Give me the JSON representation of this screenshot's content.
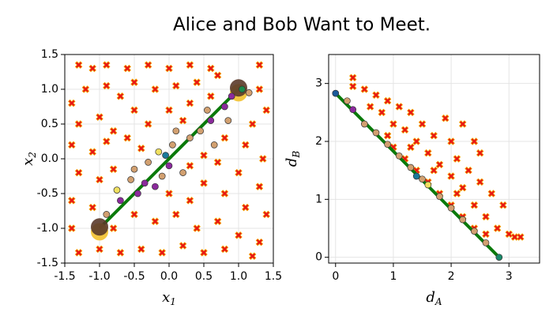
{
  "title": "Alice and Bob Want to Meet.",
  "chart_data": [
    {
      "type": "scatter",
      "xlabel": {
        "text": "x",
        "sub": "1"
      },
      "ylabel": {
        "text": "x",
        "sub": "2"
      },
      "xlim": [
        -1.5,
        1.5
      ],
      "ylim": [
        -1.5,
        1.5
      ],
      "grid": true,
      "xticks": [
        {
          "value": -1.5,
          "label": "-1.5"
        },
        {
          "value": -1,
          "label": "-1.0"
        },
        {
          "value": -0.5,
          "label": "-0.5"
        },
        {
          "value": 0,
          "label": "0.0"
        },
        0.5,
        {
          "value": 1,
          "label": "1.0"
        },
        1.5
      ],
      "yticks": [
        {
          "value": -1.5,
          "label": "-1.5"
        },
        {
          "value": -1,
          "label": "-1.0"
        },
        {
          "value": -0.5,
          "label": "-0.5"
        },
        {
          "value": 0,
          "label": "0.0"
        },
        0.5,
        {
          "value": 1,
          "label": "1.0"
        },
        1.5
      ],
      "series": [
        {
          "marker": "x",
          "color": "#e8101a",
          "x": [
            -1.3,
            -1.1,
            -0.9,
            -0.6,
            -0.3,
            0.0,
            0.3,
            0.6,
            1.3,
            -1.4,
            -1.2,
            -0.9,
            -0.7,
            -0.5,
            -0.2,
            0.1,
            0.4,
            0.7,
            1.3,
            -1.3,
            -1.0,
            -0.8,
            -0.5,
            -0.3,
            0.0,
            0.3,
            0.6,
            1.2,
            1.4,
            -1.4,
            -1.1,
            -0.9,
            -0.6,
            -0.4,
            0.2,
            0.8,
            1.1,
            1.35,
            -1.3,
            -1.0,
            -0.8,
            0.3,
            0.5,
            0.7,
            1.0,
            1.3,
            -1.4,
            -1.1,
            0.0,
            0.3,
            0.5,
            0.8,
            1.1,
            1.4,
            -1.4,
            -0.8,
            -0.5,
            -0.2,
            0.1,
            0.4,
            0.7,
            1.0,
            1.3,
            -1.3,
            -1.0,
            -0.7,
            -0.4,
            -0.1,
            0.2,
            0.5,
            0.8,
            1.2
          ],
          "y": [
            1.35,
            1.3,
            1.35,
            1.3,
            1.35,
            1.3,
            1.35,
            1.3,
            1.35,
            0.8,
            1.0,
            1.05,
            0.9,
            1.1,
            1.0,
            1.05,
            1.1,
            1.2,
            1.0,
            0.5,
            0.6,
            0.4,
            0.7,
            0.5,
            0.7,
            0.8,
            0.9,
            0.5,
            0.7,
            0.2,
            0.1,
            0.25,
            0.3,
            0.15,
            0.55,
            0.3,
            0.2,
            0.0,
            -0.2,
            -0.3,
            -0.15,
            -0.1,
            0.05,
            -0.05,
            -0.2,
            -0.4,
            -0.6,
            -0.7,
            -0.5,
            -0.6,
            -0.35,
            -0.5,
            -0.7,
            -0.8,
            -1.0,
            -1.0,
            -0.8,
            -0.9,
            -0.8,
            -1.0,
            -0.9,
            -1.1,
            -1.2,
            -1.35,
            -1.3,
            -1.35,
            -1.3,
            -1.35,
            -1.25,
            -1.35,
            -1.3,
            -1.4
          ]
        },
        {
          "marker": "line",
          "color": "#0a7a0a",
          "x": [
            -1,
            1
          ],
          "y": [
            -1,
            1
          ]
        },
        {
          "marker": "big-circle",
          "colors": [
            "#f2c12e",
            "#5a3a2a",
            "#f2c12e",
            "#5a3a2a"
          ],
          "x": [
            -1.0,
            -1.0,
            1.0,
            1.0
          ],
          "y": [
            -1.05,
            -0.98,
            0.95,
            1.02
          ]
        },
        {
          "marker": "circle",
          "colors": [
            "#d2a070",
            "#f0e060",
            "#8b2a9c",
            "#d2a070",
            "#d2a070",
            "#8b2a9c",
            "#8b2a9c",
            "#d2a070",
            "#8b2a9c",
            "#f0e060",
            "#d2a070",
            "#1a7a9a",
            "#8b2a9c",
            "#d2a070",
            "#d2a070",
            "#d2a070",
            "#d2a070",
            "#d2a070",
            "#8b2a9c",
            "#d2a070",
            "#d2a070",
            "#8b2a9c",
            "#d2a070",
            "#8b2a9c",
            "#1a8a4a",
            "#d2a070"
          ],
          "x": [
            -0.9,
            -0.75,
            -0.7,
            -0.55,
            -0.5,
            -0.45,
            -0.35,
            -0.3,
            -0.2,
            -0.15,
            -0.1,
            -0.05,
            0.0,
            0.05,
            0.1,
            0.2,
            0.3,
            0.45,
            0.6,
            0.55,
            0.65,
            0.8,
            0.85,
            0.9,
            1.05,
            1.15
          ],
          "y": [
            -0.8,
            -0.45,
            -0.6,
            -0.3,
            -0.15,
            -0.5,
            -0.35,
            -0.05,
            -0.4,
            0.1,
            -0.25,
            0.05,
            -0.1,
            0.2,
            0.4,
            -0.2,
            0.3,
            0.4,
            0.55,
            0.7,
            0.2,
            0.75,
            0.55,
            0.9,
            1.0,
            0.95
          ]
        }
      ]
    },
    {
      "type": "scatter",
      "xlabel": {
        "text": "d",
        "sub": "A"
      },
      "ylabel": {
        "text": "d",
        "sub": "B"
      },
      "xlim": [
        -0.12,
        3.53
      ],
      "ylim": [
        -0.1,
        3.5
      ],
      "grid": true,
      "xticks": [
        0,
        1,
        2,
        3
      ],
      "yticks": [
        0,
        1,
        2,
        3
      ],
      "series": [
        {
          "marker": "x",
          "color": "#e8101a",
          "x": [
            0.3,
            0.3,
            0.5,
            0.6,
            0.7,
            0.8,
            0.9,
            1.0,
            1.1,
            1.2,
            1.3,
            1.4,
            1.5,
            1.6,
            1.7,
            1.8,
            1.9,
            2.0,
            2.0,
            2.1,
            2.2,
            2.2,
            2.3,
            2.4,
            2.4,
            2.5,
            2.5,
            2.6,
            2.7,
            2.8,
            2.9,
            3.0,
            3.1,
            3.2,
            1.0,
            1.2,
            1.4,
            1.6,
            1.8,
            2.0,
            2.2,
            2.4,
            2.6,
            0.9,
            1.3,
            1.7,
            2.1
          ],
          "y": [
            2.95,
            3.1,
            2.9,
            2.6,
            2.8,
            2.5,
            2.7,
            2.3,
            2.6,
            2.2,
            2.5,
            2.0,
            2.3,
            1.8,
            2.1,
            1.6,
            2.4,
            1.4,
            2.0,
            1.7,
            2.3,
            1.2,
            1.5,
            2.0,
            0.9,
            1.3,
            1.8,
            0.7,
            1.1,
            0.5,
            0.9,
            0.4,
            0.35,
            0.35,
            1.9,
            1.7,
            1.5,
            1.3,
            1.1,
            0.9,
            0.7,
            0.5,
            0.4,
            2.1,
            1.9,
            1.5,
            1.1
          ]
        },
        {
          "marker": "line",
          "color": "#0a7a0a",
          "x": [
            0,
            2.83
          ],
          "y": [
            2.83,
            0
          ]
        },
        {
          "marker": "circle",
          "colors": [
            "#1a5a9a",
            "#d2a070",
            "#8b2a9c",
            "#d2a070",
            "#d2a070",
            "#d2a070",
            "#d2a070",
            "#d2a070",
            "#1a7a9a",
            "#d2a070",
            "#f0e060",
            "#d2a070",
            "#d2a070",
            "#d2a070",
            "#d2a070",
            "#d2a070",
            "#1a8a6a"
          ],
          "x": [
            0,
            0.2,
            0.3,
            0.5,
            0.7,
            0.9,
            1.1,
            1.3,
            1.4,
            1.5,
            1.6,
            1.8,
            2.0,
            2.2,
            2.4,
            2.6,
            2.83
          ],
          "y": [
            2.83,
            2.7,
            2.55,
            2.3,
            2.15,
            1.95,
            1.75,
            1.55,
            1.4,
            1.35,
            1.25,
            1.05,
            0.85,
            0.65,
            0.45,
            0.25,
            0
          ]
        }
      ]
    }
  ]
}
